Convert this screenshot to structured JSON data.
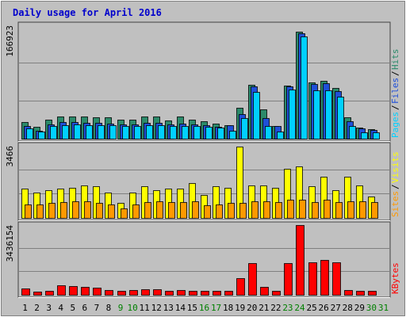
{
  "chart_data": {
    "type": "bar",
    "title": "Daily usage for April 2016",
    "categories": [
      "1",
      "2",
      "3",
      "4",
      "5",
      "6",
      "7",
      "8",
      "9",
      "10",
      "11",
      "12",
      "13",
      "14",
      "15",
      "16",
      "17",
      "18",
      "19",
      "20",
      "21",
      "22",
      "23",
      "24",
      "25",
      "26",
      "27",
      "28",
      "29",
      "30",
      "31"
    ],
    "weekend_days": [
      "9",
      "10",
      "16",
      "17",
      "23",
      "24",
      "30",
      "31"
    ],
    "panels": [
      {
        "id": "pages-files-hits",
        "ymax_label": "166923",
        "ylim": [
          0,
          166923
        ],
        "legend": [
          "Pages",
          "Files",
          "Hits"
        ],
        "series": [
          {
            "name": "Hits",
            "color": "#2b8a6a",
            "values": [
              24000,
              17000,
              28000,
              33000,
              33000,
              32000,
              31000,
              31000,
              28000,
              28000,
              33000,
              33000,
              27000,
              33000,
              28000,
              26000,
              22000,
              20000,
              45000,
              79000,
              43000,
              18000,
              78000,
              157000,
              82000,
              85000,
              74000,
              31000,
              16000,
              14000,
              0
            ]
          },
          {
            "name": "Files",
            "color": "#1f4fd8",
            "values": [
              18000,
              12000,
              21000,
              24000,
              24000,
              23000,
              23000,
              22000,
              21000,
              21000,
              23000,
              23000,
              21000,
              22000,
              21000,
              20000,
              17000,
              20000,
              36000,
              77000,
              30000,
              18000,
              76000,
              154000,
              80000,
              81000,
              70000,
              25000,
              15000,
              13000,
              0
            ]
          },
          {
            "name": "Pages",
            "color": "#00d0ff",
            "values": [
              15000,
              10000,
              18000,
              20000,
              21000,
              20000,
              20000,
              20000,
              19000,
              18000,
              20000,
              20000,
              19000,
              19000,
              18000,
              17000,
              16000,
              12000,
              30000,
              68000,
              18000,
              10000,
              72000,
              150000,
              71000,
              71000,
              62000,
              19000,
              9000,
              9000,
              0
            ]
          }
        ]
      },
      {
        "id": "visits-sites",
        "ymax_label": "3466",
        "ylim": [
          0,
          3466
        ],
        "legend": [
          "Sites",
          "Visits"
        ],
        "series": [
          {
            "name": "Visits",
            "color": "#ffff00",
            "values": [
              1400,
              1200,
              1300,
              1400,
              1450,
              1550,
              1500,
              1200,
              700,
              1200,
              1500,
              1300,
              1400,
              1400,
              1650,
              1100,
              1500,
              1450,
              3400,
              1550,
              1550,
              1450,
              2350,
              2450,
              1500,
              1950,
              1300,
              1950,
              1550,
              1000,
              0
            ]
          },
          {
            "name": "Sites",
            "color": "#ff9900",
            "values": [
              650,
              650,
              700,
              750,
              800,
              800,
              700,
              650,
              450,
              650,
              750,
              800,
              750,
              750,
              800,
              600,
              650,
              700,
              700,
              800,
              800,
              750,
              850,
              850,
              750,
              850,
              750,
              800,
              800,
              750,
              0
            ]
          }
        ]
      },
      {
        "id": "kbytes",
        "ymax_label": "3436154",
        "ylim": [
          0,
          3436154
        ],
        "legend": [
          "KBytes"
        ],
        "series": [
          {
            "name": "KBytes",
            "color": "#ff0000",
            "values": [
              320000,
              160000,
              180000,
              460000,
              420000,
              380000,
              340000,
              240000,
              210000,
              240000,
              260000,
              260000,
              210000,
              240000,
              210000,
              180000,
              200000,
              210000,
              830000,
              1550000,
              400000,
              180000,
              1550000,
              3400000,
              1600000,
              1700000,
              1600000,
              240000,
              210000,
              180000,
              0
            ]
          }
        ]
      }
    ]
  }
}
